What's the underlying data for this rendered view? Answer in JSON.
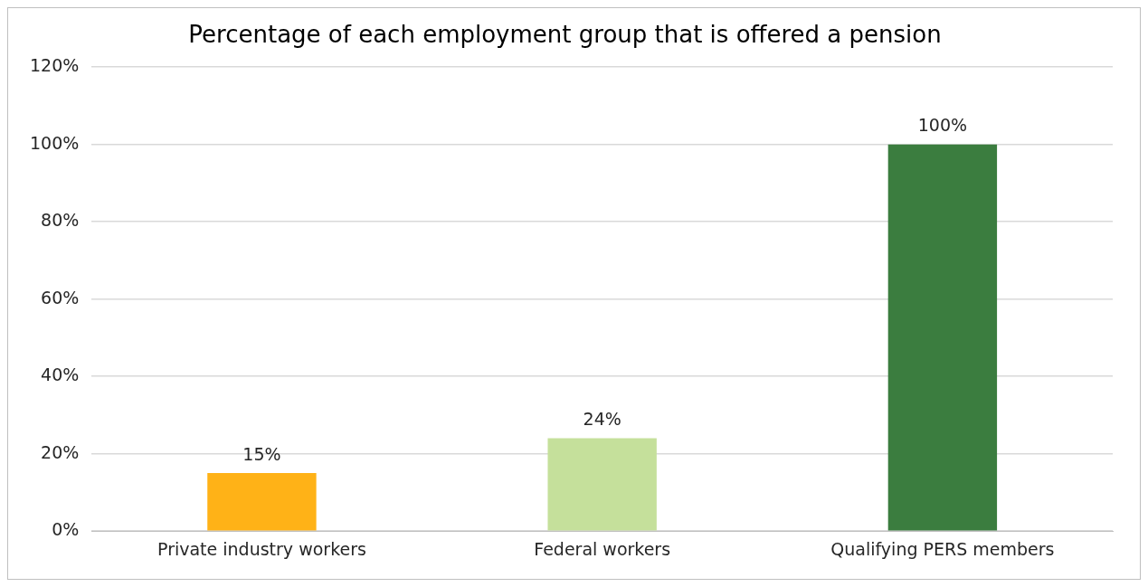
{
  "chart_data": {
    "type": "bar",
    "title": "Percentage of each employment group that is offered a pension",
    "categories": [
      "Private industry workers",
      "Federal workers",
      "Qualifying PERS members"
    ],
    "values": [
      15,
      24,
      100
    ],
    "colors": [
      "#ffb217",
      "#c5e09b",
      "#3b7d3f"
    ],
    "value_labels": [
      "15%",
      "24%",
      "100%"
    ],
    "ylim": [
      0,
      120
    ],
    "yticks": [
      {
        "value": 0,
        "label": "0%"
      },
      {
        "value": 20,
        "label": "20%"
      },
      {
        "value": 40,
        "label": "40%"
      },
      {
        "value": 60,
        "label": "60%"
      },
      {
        "value": 80,
        "label": "80%"
      },
      {
        "value": 100,
        "label": "100%"
      },
      {
        "value": 120,
        "label": "120%"
      }
    ],
    "grid": "y",
    "legend": false
  }
}
